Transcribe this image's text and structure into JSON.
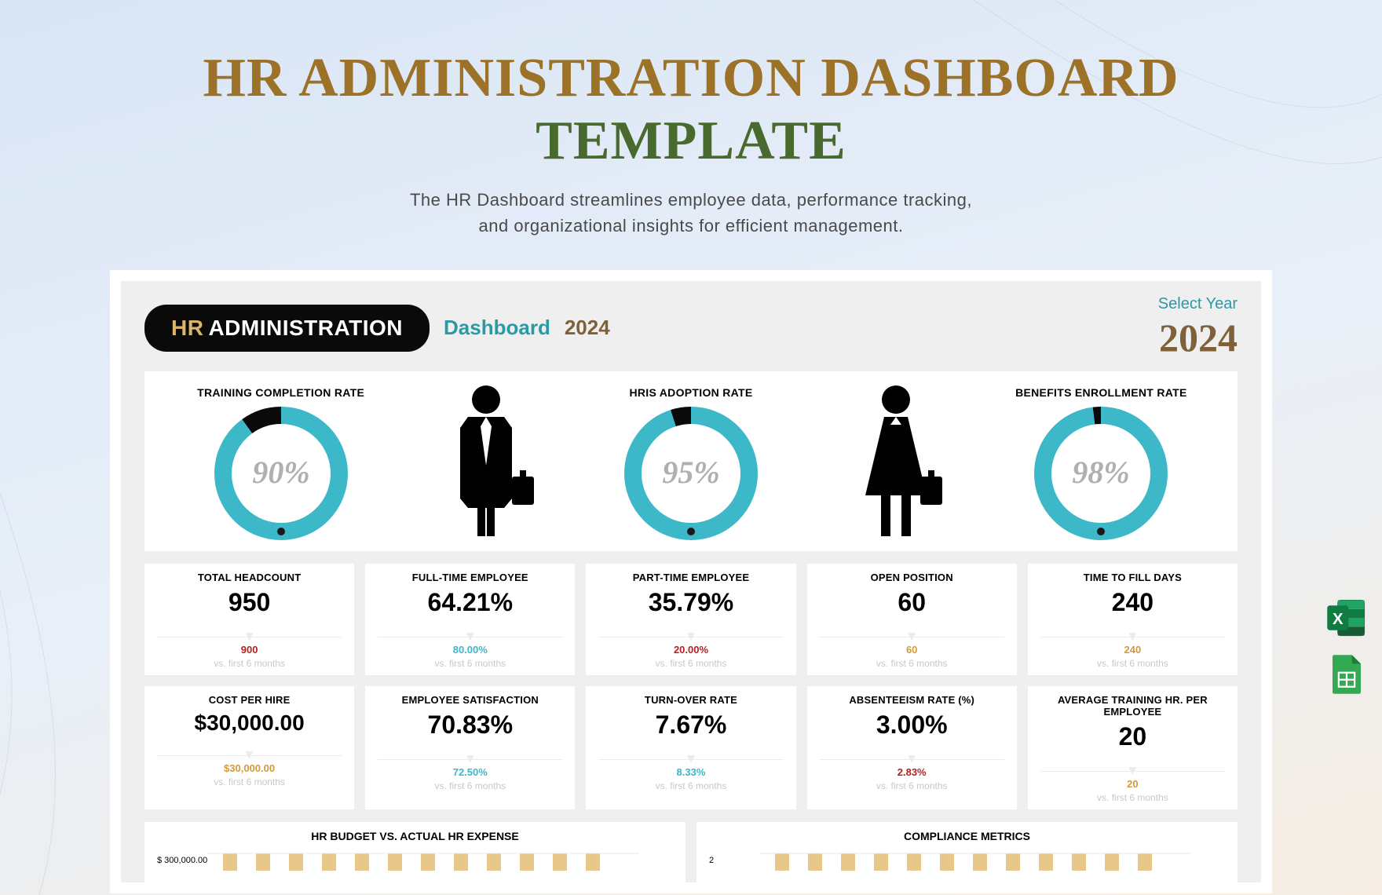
{
  "header": {
    "title_left": "HR ADMINISTRATION DASHBOARD",
    "title_right": "TEMPLATE",
    "subtitle": "The HR Dashboard streamlines employee data, performance tracking,\nand organizational insights for efficient management."
  },
  "dash_header": {
    "pill_hr": "HR",
    "pill_rest": "ADMINISTRATION",
    "dashboard_word": "Dashboard",
    "year_word": "2024",
    "select_year_label": "Select Year",
    "select_year_value": "2024"
  },
  "donuts": [
    {
      "title": "TRAINING COMPLETION RATE",
      "pct": 90,
      "label": "90%"
    },
    {
      "title": "HRIS ADOPTION RATE",
      "pct": 95,
      "label": "95%"
    },
    {
      "title": "BENEFITS ENROLLMENT RATE",
      "pct": 98,
      "label": "98%"
    }
  ],
  "donut_style": {
    "ring_color": "#3cb8c9",
    "remain_color": "#0a0a0a",
    "bg": "#ffffff",
    "ring_width": 22,
    "diameter": 170,
    "dot_color": "#1a1a1a",
    "pct_fontsize": 40
  },
  "kpis": [
    {
      "title": "TOTAL HEADCOUNT",
      "value": "950",
      "comp": "900",
      "comp_color": "#b22222"
    },
    {
      "title": "FULL-TIME EMPLOYEE",
      "value": "64.21%",
      "comp": "80.00%",
      "comp_color": "#3cb8c9"
    },
    {
      "title": "PART-TIME EMPLOYEE",
      "value": "35.79%",
      "comp": "20.00%",
      "comp_color": "#b22222"
    },
    {
      "title": "OPEN POSITION",
      "value": "60",
      "comp": "60",
      "comp_color": "#d29a3a"
    },
    {
      "title": "TIME TO FILL DAYS",
      "value": "240",
      "comp": "240",
      "comp_color": "#d29a3a"
    },
    {
      "title": "COST PER HIRE",
      "value": "$30,000.00",
      "comp": "$30,000.00",
      "comp_color": "#d29a3a"
    },
    {
      "title": "EMPLOYEE SATISFACTION",
      "value": "70.83%",
      "comp": "72.50%",
      "comp_color": "#3cb8c9"
    },
    {
      "title": "TURN-OVER RATE",
      "value": "7.67%",
      "comp": "8.33%",
      "comp_color": "#3cb8c9"
    },
    {
      "title": "ABSENTEEISM RATE (%)",
      "value": "3.00%",
      "comp": "2.83%",
      "comp_color": "#b22222"
    },
    {
      "title": "AVERAGE TRAINING HR. PER EMPLOYEE",
      "value": "20",
      "comp": "20",
      "comp_color": "#d29a3a"
    }
  ],
  "kpi_sub": "vs. first 6 months",
  "bottom_charts": {
    "left": {
      "title": "HR BUDGET VS. ACTUAL HR EXPENSE",
      "y_first": "$ 300,000.00"
    },
    "right": {
      "title": "COMPLIANCE METRICS",
      "y_first": "2"
    },
    "bar_color": "#e8c88a",
    "grid_color": "#e8e8e8"
  },
  "colors": {
    "title_brown": "#9c7128",
    "title_green": "#486a2e",
    "teal": "#2a9ba5",
    "gold": "#7e6139",
    "card_bg": "#ffffff",
    "dash_bg": "#efefef"
  },
  "side_apps": {
    "excel": "Excel",
    "sheets": "Google Sheets"
  }
}
